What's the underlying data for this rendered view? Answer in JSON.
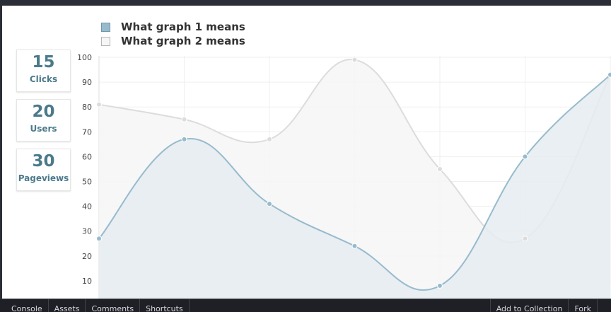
{
  "stats": [
    {
      "value": "15",
      "label": "Clicks"
    },
    {
      "value": "20",
      "label": "Users"
    },
    {
      "value": "30",
      "label": "Pageviews"
    }
  ],
  "chart_data": {
    "type": "area",
    "title": "",
    "xlabel": "",
    "ylabel": "",
    "categories": [
      "",
      "",
      "",
      "",
      "",
      "",
      ""
    ],
    "ylim": [
      0,
      100
    ],
    "yticks": [
      10,
      20,
      30,
      40,
      50,
      60,
      70,
      80,
      90,
      100
    ],
    "grid": true,
    "legend_position": "top-left",
    "series": [
      {
        "name": "What graph 1 means",
        "values": [
          27,
          67,
          41,
          24,
          8,
          60,
          93
        ],
        "color": "#97bbcd",
        "fill": "#e5ecf0"
      },
      {
        "name": "What graph 2 means",
        "values": [
          81,
          75,
          67,
          99,
          55,
          27,
          93
        ],
        "color": "#dcdcdc",
        "fill": "#f6f6f6"
      }
    ]
  },
  "bottom_bar": {
    "left": [
      "Console",
      "Assets",
      "Comments",
      "Shortcuts"
    ],
    "right": [
      "Add to Collection",
      "Fork",
      ""
    ]
  }
}
